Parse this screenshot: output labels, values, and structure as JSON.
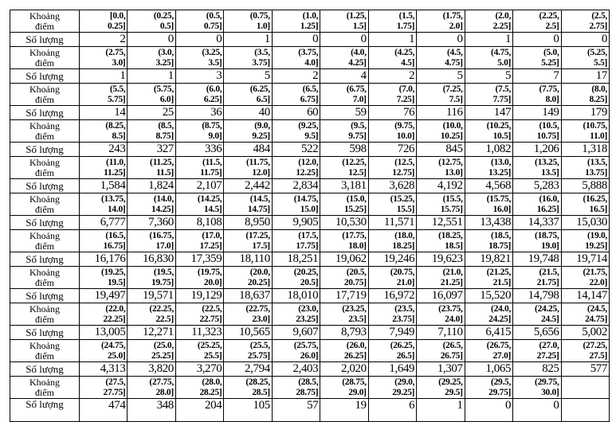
{
  "labels": {
    "interval": "Khoảng\nđiểm",
    "count": "Số lượng"
  },
  "blocks": [
    {
      "intervals": [
        "[0.0,\n0.25]",
        "(0.25,\n0.5]",
        "(0.5,\n0.75]",
        "(0.75,\n1.0]",
        "(1.0,\n1.25]",
        "(1.25,\n1.5]",
        "(1.5,\n1.75]",
        "(1.75,\n2.0]",
        "(2.0,\n2.25]",
        "(2.25,\n2.5]",
        "(2.5,\n2.75]"
      ],
      "counts": [
        "2",
        "0",
        "0",
        "1",
        "0",
        "0",
        "1",
        "0",
        "1",
        "0",
        "0"
      ]
    },
    {
      "intervals": [
        "(2.75,\n3.0]",
        "(3.0,\n3.25]",
        "(3.25,\n3.5]",
        "(3.5,\n3.75]",
        "(3.75,\n4.0]",
        "(4.0,\n4.25]",
        "(4.25,\n4.5]",
        "(4.5,\n4.75]",
        "(4.75,\n5.0]",
        "(5.0,\n5.25]",
        "(5.25,\n5.5]"
      ],
      "counts": [
        "1",
        "1",
        "3",
        "5",
        "2",
        "4",
        "2",
        "5",
        "5",
        "7",
        "17"
      ]
    },
    {
      "intervals": [
        "(5.5,\n5.75]",
        "(5.75,\n6.0]",
        "(6.0,\n6.25]",
        "(6.25,\n6.5]",
        "(6.5,\n6.75]",
        "(6.75,\n7.0]",
        "(7.0,\n7.25]",
        "(7.25,\n7.5]",
        "(7.5,\n7.75]",
        "(7.75,\n8.0]",
        "(8.0,\n8.25]"
      ],
      "counts": [
        "14",
        "25",
        "36",
        "40",
        "60",
        "59",
        "76",
        "116",
        "147",
        "149",
        "179"
      ]
    },
    {
      "intervals": [
        "(8.25,\n8.5]",
        "(8.5,\n8.75]",
        "(8.75,\n9.0]",
        "(9.0,\n9.25]",
        "(9.25,\n9.5]",
        "(9.5,\n9.75]",
        "(9.75,\n10.0]",
        "(10.0,\n10.25]",
        "(10.25,\n10.5]",
        "(10.5,\n10.75]",
        "(10.75,\n11.0]"
      ],
      "counts": [
        "243",
        "327",
        "336",
        "484",
        "522",
        "598",
        "726",
        "845",
        "1,082",
        "1,206",
        "1,318"
      ]
    },
    {
      "intervals": [
        "(11.0,\n11.25]",
        "(11.25,\n11.5]",
        "(11.5,\n11.75]",
        "(11.75,\n12.0]",
        "(12.0,\n12.25]",
        "(12.25,\n12.5]",
        "(12.5,\n12.75]",
        "(12.75,\n13.0]",
        "(13.0,\n13.25]",
        "(13.25,\n13.5]",
        "(13.5,\n13.75]"
      ],
      "counts": [
        "1,584",
        "1,824",
        "2,107",
        "2,442",
        "2,834",
        "3,181",
        "3,628",
        "4,192",
        "4,568",
        "5,283",
        "5,888"
      ]
    },
    {
      "intervals": [
        "(13.75,\n14.0]",
        "(14.0,\n14.25]",
        "(14.25,\n14.5]",
        "(14.5,\n14.75]",
        "(14.75,\n15.0]",
        "(15.0,\n15.25]",
        "(15.25,\n15.5]",
        "(15.5,\n15.75]",
        "(15.75,\n16.0]",
        "(16.0,\n16.25]",
        "(16.25,\n16.5]"
      ],
      "counts": [
        "6,777",
        "7,360",
        "8,108",
        "8,950",
        "9,905",
        "10,530",
        "11,571",
        "12,551",
        "13,438",
        "14,337",
        "15,030"
      ]
    },
    {
      "intervals": [
        "(16.5,\n16.75]",
        "(16.75,\n17.0]",
        "(17.0,\n17.25]",
        "(17.25,\n17.5]",
        "(17.5,\n17.75]",
        "(17.75,\n18.0]",
        "(18.0,\n18.25]",
        "(18.25,\n18.5]",
        "(18.5,\n18.75]",
        "(18.75,\n19.0]",
        "(19.0,\n19.25]"
      ],
      "counts": [
        "16,176",
        "16,830",
        "17,359",
        "18,110",
        "18,251",
        "19,062",
        "19,246",
        "19,623",
        "19,821",
        "19,748",
        "19,714"
      ]
    },
    {
      "intervals": [
        "(19.25,\n19.5]",
        "(19.5,\n19.75]",
        "(19.75,\n20.0]",
        "(20.0,\n20.25]",
        "(20.25,\n20.5]",
        "(20.5,\n20.75]",
        "(20.75,\n21.0]",
        "(21.0,\n21.25]",
        "(21.25,\n21.5]",
        "(21.5,\n21.75]",
        "(21.75,\n22.0]"
      ],
      "counts": [
        "19,497",
        "19,571",
        "19,129",
        "18,637",
        "18,010",
        "17,719",
        "16,972",
        "16,097",
        "15,520",
        "14,798",
        "14,147"
      ]
    },
    {
      "intervals": [
        "(22.0,\n22.25]",
        "(22.25,\n22.5]",
        "(22.5,\n22.75]",
        "(22.75,\n23.0]",
        "(23.0,\n23.25]",
        "(23.25,\n23.5]",
        "(23.5,\n23.75]",
        "(23.75,\n24.0]",
        "(24.0,\n24.25]",
        "(24.25,\n24.5]",
        "(24.5,\n24.75]"
      ],
      "counts": [
        "13,005",
        "12,271",
        "11,323",
        "10,565",
        "9,607",
        "8,793",
        "7,949",
        "7,110",
        "6,415",
        "5,656",
        "5,002"
      ]
    },
    {
      "intervals": [
        "(24.75,\n25.0]",
        "(25.0,\n25.25]",
        "(25.25,\n25.5]",
        "(25.5,\n25.75]",
        "(25.75,\n26.0]",
        "(26.0,\n26.25]",
        "(26.25,\n26.5]",
        "(26.5,\n26.75]",
        "(26.75,\n27.0]",
        "(27.0,\n27.25]",
        "(27.25,\n27.5]"
      ],
      "counts": [
        "4,313",
        "3,820",
        "3,270",
        "2,794",
        "2,403",
        "2,020",
        "1,649",
        "1,307",
        "1,065",
        "825",
        "577"
      ]
    },
    {
      "intervals": [
        "(27.5,\n27.75]",
        "(27.75,\n28.0]",
        "(28.0,\n28.25]",
        "(28.25,\n28.5]",
        "(28.5,\n28.75]",
        "(28.75,\n29.0]",
        "(29.0,\n29.25]",
        "(29.25,\n29.5]",
        "(29.5,\n29.75]",
        "(29.75,\n30.0]",
        ""
      ],
      "counts": [
        "474",
        "348",
        "204",
        "105",
        "57",
        "19",
        "6",
        "1",
        "0",
        "0",
        ""
      ]
    }
  ]
}
